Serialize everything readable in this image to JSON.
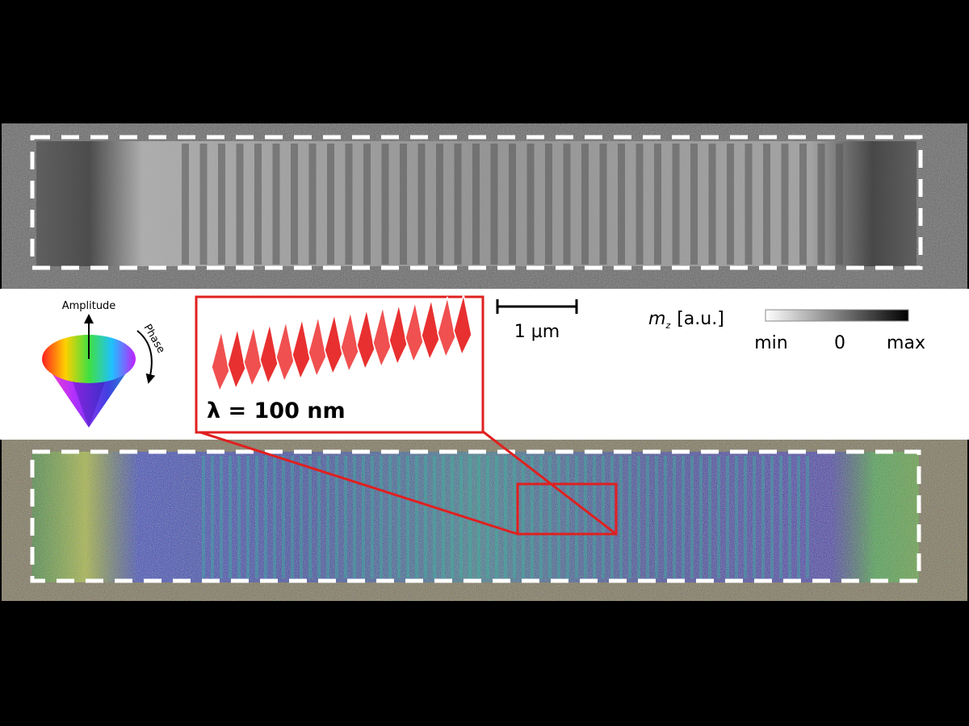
{
  "legend_cone": {
    "amplitude": "Amplitude",
    "phase": "Phase"
  },
  "inset": {
    "wavelength": "λ = 100 nm"
  },
  "scale_bar": {
    "label": "1 µm"
  },
  "colorbar": {
    "symbol": "m",
    "subscript": "z",
    "unit": "[a.u.]",
    "min": "min",
    "zero": "0",
    "max": "max"
  }
}
